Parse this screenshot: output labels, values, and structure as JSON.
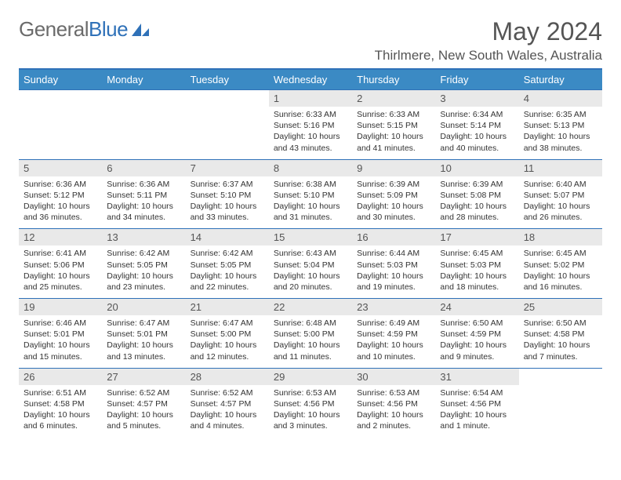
{
  "brand": {
    "part1": "General",
    "part2": "Blue"
  },
  "title": "May 2024",
  "location": "Thirlmere, New South Wales, Australia",
  "colors": {
    "accent": "#3b8ac4",
    "rule": "#2f71b8",
    "dayHeaderBg": "#e9e9e9",
    "text": "#333333",
    "mutedText": "#555555",
    "background": "#ffffff"
  },
  "weekdays": [
    "Sunday",
    "Monday",
    "Tuesday",
    "Wednesday",
    "Thursday",
    "Friday",
    "Saturday"
  ],
  "weeks": [
    [
      null,
      null,
      null,
      {
        "n": "1",
        "sr": "6:33 AM",
        "ss": "5:16 PM",
        "dl": "10 hours and 43 minutes."
      },
      {
        "n": "2",
        "sr": "6:33 AM",
        "ss": "5:15 PM",
        "dl": "10 hours and 41 minutes."
      },
      {
        "n": "3",
        "sr": "6:34 AM",
        "ss": "5:14 PM",
        "dl": "10 hours and 40 minutes."
      },
      {
        "n": "4",
        "sr": "6:35 AM",
        "ss": "5:13 PM",
        "dl": "10 hours and 38 minutes."
      }
    ],
    [
      {
        "n": "5",
        "sr": "6:36 AM",
        "ss": "5:12 PM",
        "dl": "10 hours and 36 minutes."
      },
      {
        "n": "6",
        "sr": "6:36 AM",
        "ss": "5:11 PM",
        "dl": "10 hours and 34 minutes."
      },
      {
        "n": "7",
        "sr": "6:37 AM",
        "ss": "5:10 PM",
        "dl": "10 hours and 33 minutes."
      },
      {
        "n": "8",
        "sr": "6:38 AM",
        "ss": "5:10 PM",
        "dl": "10 hours and 31 minutes."
      },
      {
        "n": "9",
        "sr": "6:39 AM",
        "ss": "5:09 PM",
        "dl": "10 hours and 30 minutes."
      },
      {
        "n": "10",
        "sr": "6:39 AM",
        "ss": "5:08 PM",
        "dl": "10 hours and 28 minutes."
      },
      {
        "n": "11",
        "sr": "6:40 AM",
        "ss": "5:07 PM",
        "dl": "10 hours and 26 minutes."
      }
    ],
    [
      {
        "n": "12",
        "sr": "6:41 AM",
        "ss": "5:06 PM",
        "dl": "10 hours and 25 minutes."
      },
      {
        "n": "13",
        "sr": "6:42 AM",
        "ss": "5:05 PM",
        "dl": "10 hours and 23 minutes."
      },
      {
        "n": "14",
        "sr": "6:42 AM",
        "ss": "5:05 PM",
        "dl": "10 hours and 22 minutes."
      },
      {
        "n": "15",
        "sr": "6:43 AM",
        "ss": "5:04 PM",
        "dl": "10 hours and 20 minutes."
      },
      {
        "n": "16",
        "sr": "6:44 AM",
        "ss": "5:03 PM",
        "dl": "10 hours and 19 minutes."
      },
      {
        "n": "17",
        "sr": "6:45 AM",
        "ss": "5:03 PM",
        "dl": "10 hours and 18 minutes."
      },
      {
        "n": "18",
        "sr": "6:45 AM",
        "ss": "5:02 PM",
        "dl": "10 hours and 16 minutes."
      }
    ],
    [
      {
        "n": "19",
        "sr": "6:46 AM",
        "ss": "5:01 PM",
        "dl": "10 hours and 15 minutes."
      },
      {
        "n": "20",
        "sr": "6:47 AM",
        "ss": "5:01 PM",
        "dl": "10 hours and 13 minutes."
      },
      {
        "n": "21",
        "sr": "6:47 AM",
        "ss": "5:00 PM",
        "dl": "10 hours and 12 minutes."
      },
      {
        "n": "22",
        "sr": "6:48 AM",
        "ss": "5:00 PM",
        "dl": "10 hours and 11 minutes."
      },
      {
        "n": "23",
        "sr": "6:49 AM",
        "ss": "4:59 PM",
        "dl": "10 hours and 10 minutes."
      },
      {
        "n": "24",
        "sr": "6:50 AM",
        "ss": "4:59 PM",
        "dl": "10 hours and 9 minutes."
      },
      {
        "n": "25",
        "sr": "6:50 AM",
        "ss": "4:58 PM",
        "dl": "10 hours and 7 minutes."
      }
    ],
    [
      {
        "n": "26",
        "sr": "6:51 AM",
        "ss": "4:58 PM",
        "dl": "10 hours and 6 minutes."
      },
      {
        "n": "27",
        "sr": "6:52 AM",
        "ss": "4:57 PM",
        "dl": "10 hours and 5 minutes."
      },
      {
        "n": "28",
        "sr": "6:52 AM",
        "ss": "4:57 PM",
        "dl": "10 hours and 4 minutes."
      },
      {
        "n": "29",
        "sr": "6:53 AM",
        "ss": "4:56 PM",
        "dl": "10 hours and 3 minutes."
      },
      {
        "n": "30",
        "sr": "6:53 AM",
        "ss": "4:56 PM",
        "dl": "10 hours and 2 minutes."
      },
      {
        "n": "31",
        "sr": "6:54 AM",
        "ss": "4:56 PM",
        "dl": "10 hours and 1 minute."
      },
      null
    ]
  ],
  "labels": {
    "sunrise": "Sunrise:",
    "sunset": "Sunset:",
    "daylight": "Daylight:"
  }
}
